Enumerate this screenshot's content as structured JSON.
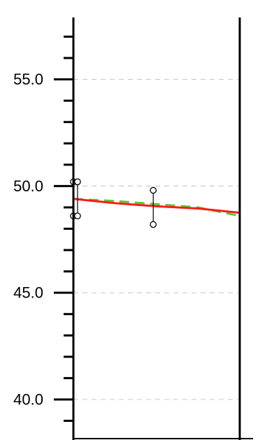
{
  "chart_data": {
    "type": "line",
    "title": "",
    "xlabel": "",
    "ylabel": "",
    "xlim": [
      0,
      1
    ],
    "ylim": [
      38.1,
      57.9
    ],
    "y_ticks": [
      {
        "value": 55.0,
        "label": "55.0"
      },
      {
        "value": 50.0,
        "label": "50.0"
      },
      {
        "value": 45.0,
        "label": "45.0"
      },
      {
        "value": 40.0,
        "label": "40.0"
      }
    ],
    "y_minor_step": 1.0,
    "grid": true,
    "series": [
      {
        "color": "#ff1a1a",
        "style": "solid",
        "x": [
          0.0,
          0.25,
          0.5,
          0.75,
          1.0
        ],
        "y": [
          49.4,
          49.2,
          49.05,
          48.95,
          48.75
        ]
      },
      {
        "color": "#55cc33",
        "style": "dashed",
        "x": [
          0.0,
          0.25,
          0.5,
          0.75,
          1.0
        ],
        "y": [
          49.4,
          49.3,
          49.15,
          49.0,
          48.6
        ]
      }
    ],
    "observations": [
      {
        "x": 0.0,
        "low": 48.6,
        "high": 50.2
      },
      {
        "x": 0.025,
        "low": 48.6,
        "high": 50.2
      },
      {
        "x": 0.48,
        "low": 48.2,
        "high": 49.8
      }
    ]
  }
}
